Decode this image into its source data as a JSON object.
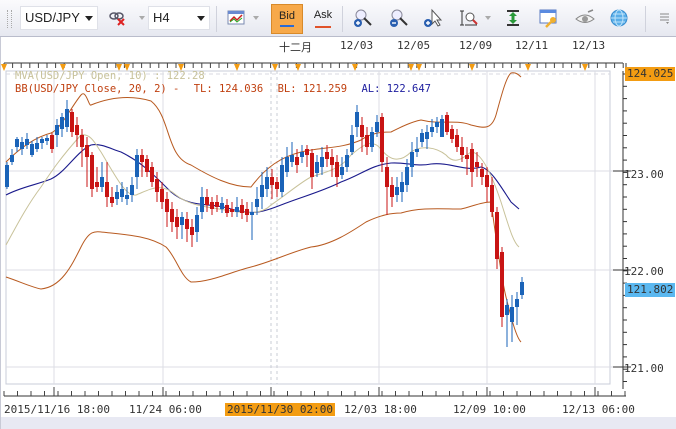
{
  "toolbar": {
    "symbol": "USD/JPY",
    "timeframe": "H4",
    "bid_label": "Bid",
    "ask_label": "Ask",
    "icons": [
      "link-remove-icon",
      "chart-type-icon",
      "zoom-in-icon",
      "zoom-out-icon",
      "cursor-zoom-icon",
      "range-zoom-icon",
      "vertical-fit-icon",
      "window-key-icon",
      "eye-icon",
      "globe-icon",
      "menu-overflow-icon"
    ],
    "colors": {
      "bid_bg": "#f7a94a",
      "bid_underline": "#2a6bd6",
      "ask_underline": "#e0522a"
    }
  },
  "chart": {
    "top_date_labels": [
      "十二月",
      "12/03",
      "12/05",
      "12/09",
      "12/11",
      "12/13"
    ],
    "legend": {
      "mva": "MVA(USD/JPY Open, 10) : 122.28",
      "bb_name": "BB(USD/JPY Close,  20,  2)  -",
      "tl": "TL: 124.036",
      "bl": "BL: 121.259",
      "al": "AL: 122.647"
    },
    "price_labels": [
      "123.00",
      "122.00",
      "121.00"
    ],
    "high_marker": "124.025",
    "current_price": "121.802",
    "x_labels": [
      "2015/11/16 18:00",
      "11/24 06:00",
      "2015/11/30 02:00",
      "12/03 18:00",
      "12/09 10:00",
      "12/13 06:00"
    ],
    "x_highlight": "2015/11/30 02:00",
    "colors": {
      "up": "#1a63b8",
      "down": "#c81414",
      "bb": "#b85a20",
      "ma20": "#1a1a8c",
      "mva": "#c8c29a",
      "high_bg": "#f39c12",
      "cur_bg": "#5bb8f0"
    }
  },
  "chart_data": {
    "type": "candlestick",
    "title": "USD/JPY H4",
    "symbol": "USD/JPY",
    "timeframe": "H4",
    "xlabel": "",
    "ylabel": "",
    "ylim": [
      120.9,
      124.1
    ],
    "x_tick_labels": [
      "2015/11/16 18:00",
      "11/24 06:00",
      "2015/11/30 02:00",
      "12/03 18:00",
      "12/09 10:00",
      "12/13 06:00"
    ],
    "y_tick_labels": [
      "121.00",
      "122.00",
      "123.00"
    ],
    "indicators": [
      {
        "name": "MVA(USD/JPY Open, 10)",
        "value": 122.28
      },
      {
        "name": "BB(USD/JPY Close, 20, 2)",
        "TL": 124.036,
        "BL": 121.259,
        "AL": 122.647
      }
    ],
    "annotations": {
      "high_marker": 124.025,
      "last_price": 121.802
    },
    "grid": true
  }
}
